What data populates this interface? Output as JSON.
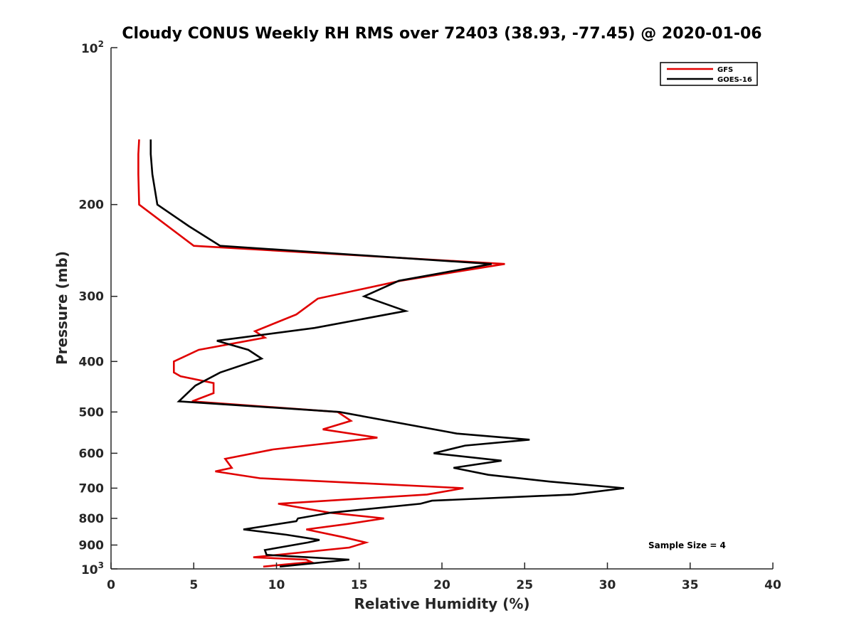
{
  "chart_data": {
    "type": "line",
    "title": "Cloudy CONUS Weekly RH RMS over 72403 (38.93, -77.45) @ 2020-01-06",
    "xlabel": "Relative Humidity (%)",
    "ylabel": "Pressure (mb)",
    "xlim": [
      0,
      40
    ],
    "ylim": [
      100,
      1000
    ],
    "yscale": "log",
    "y_reversed": true,
    "grid": false,
    "legend_position": "top-right",
    "x_ticks": [
      "0",
      "5",
      "10",
      "15",
      "20",
      "25",
      "30",
      "35",
      "40"
    ],
    "y_ticks": [
      {
        "value": 200,
        "label": "200"
      },
      {
        "value": 300,
        "label": "300"
      },
      {
        "value": 400,
        "label": "400"
      },
      {
        "value": 500,
        "label": "500"
      },
      {
        "value": 600,
        "label": "600"
      },
      {
        "value": 700,
        "label": "700"
      },
      {
        "value": 800,
        "label": "800"
      },
      {
        "value": 900,
        "label": "900"
      }
    ],
    "y_power_ticks": [
      {
        "value": 100,
        "base": "10",
        "exp": "2"
      },
      {
        "value": 1000,
        "base": "10",
        "exp": "3"
      }
    ],
    "series": [
      {
        "name": "GFS",
        "color": "#e00000",
        "points": [
          [
            1.7,
            150
          ],
          [
            1.65,
            160
          ],
          [
            1.65,
            175
          ],
          [
            1.7,
            200
          ],
          [
            5.0,
            240
          ],
          [
            23.8,
            260
          ],
          [
            17.5,
            280
          ],
          [
            12.5,
            303
          ],
          [
            11.2,
            325
          ],
          [
            8.7,
            350
          ],
          [
            9.3,
            360
          ],
          [
            5.3,
            380
          ],
          [
            3.8,
            400
          ],
          [
            3.8,
            420
          ],
          [
            4.2,
            427
          ],
          [
            6.2,
            440
          ],
          [
            6.2,
            460
          ],
          [
            4.9,
            477
          ],
          [
            13.7,
            500
          ],
          [
            14.5,
            520
          ],
          [
            12.8,
            540
          ],
          [
            16.1,
            560
          ],
          [
            9.8,
            590
          ],
          [
            6.9,
            615
          ],
          [
            7.3,
            640
          ],
          [
            6.3,
            650
          ],
          [
            9.0,
            670
          ],
          [
            21.3,
            700
          ],
          [
            19.1,
            720
          ],
          [
            10.1,
            750
          ],
          [
            13.2,
            780
          ],
          [
            16.5,
            800
          ],
          [
            14.3,
            820
          ],
          [
            11.8,
            840
          ],
          [
            14.1,
            870
          ],
          [
            15.4,
            890
          ],
          [
            14.4,
            910
          ],
          [
            8.6,
            950
          ],
          [
            11.8,
            960
          ],
          [
            12.1,
            970
          ],
          [
            9.2,
            990
          ]
        ]
      },
      {
        "name": "GOES-16",
        "color": "#000000",
        "points": [
          [
            2.4,
            150
          ],
          [
            2.4,
            160
          ],
          [
            2.5,
            175
          ],
          [
            2.8,
            200
          ],
          [
            4.7,
            220
          ],
          [
            6.6,
            240
          ],
          [
            23.0,
            260
          ],
          [
            17.4,
            280
          ],
          [
            15.3,
            300
          ],
          [
            17.8,
            320
          ],
          [
            12.3,
            345
          ],
          [
            6.4,
            365
          ],
          [
            8.3,
            380
          ],
          [
            9.1,
            395
          ],
          [
            6.6,
            420
          ],
          [
            5.1,
            445
          ],
          [
            4.1,
            477
          ],
          [
            13.8,
            500
          ],
          [
            20.9,
            550
          ],
          [
            25.3,
            565
          ],
          [
            21.4,
            580
          ],
          [
            19.5,
            600
          ],
          [
            23.6,
            620
          ],
          [
            20.7,
            640
          ],
          [
            22.8,
            660
          ],
          [
            26.5,
            680
          ],
          [
            31.0,
            700
          ],
          [
            27.9,
            720
          ],
          [
            19.4,
            740
          ],
          [
            18.7,
            750
          ],
          [
            13.3,
            780
          ],
          [
            11.3,
            800
          ],
          [
            11.2,
            810
          ],
          [
            8.0,
            840
          ],
          [
            10.6,
            860
          ],
          [
            12.6,
            880
          ],
          [
            11.9,
            890
          ],
          [
            9.3,
            920
          ],
          [
            9.4,
            940
          ],
          [
            14.4,
            960
          ],
          [
            10.2,
            990
          ]
        ]
      }
    ],
    "annotations": [
      "Sample Size = 4"
    ]
  }
}
